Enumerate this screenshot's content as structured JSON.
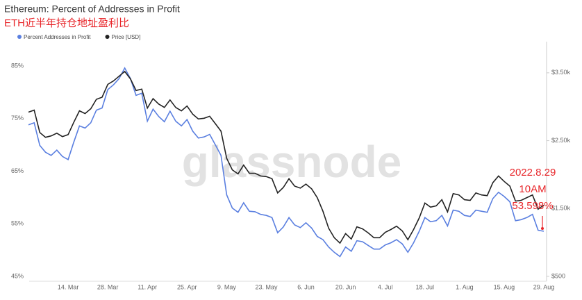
{
  "chart_data": {
    "type": "line",
    "title": "Ethereum: Percent of Addresses in Profit",
    "subtitle": "ETH近半年持仓地址盈利比",
    "watermark": "glassnode",
    "annotation": [
      "2022.8.29",
      "10AM",
      "53.598%"
    ],
    "annotation_color": "#e8262a",
    "legend": "top-left",
    "grid": false,
    "categories": [
      null,
      null,
      null,
      null,
      null,
      null,
      null,
      "14. Mar",
      null,
      null,
      null,
      null,
      null,
      null,
      "28. Mar",
      null,
      null,
      null,
      null,
      null,
      null,
      "11. Apr",
      null,
      null,
      null,
      null,
      null,
      null,
      "25. Apr",
      null,
      null,
      null,
      null,
      null,
      null,
      "9. May",
      null,
      null,
      null,
      null,
      null,
      null,
      "23. May",
      null,
      null,
      null,
      null,
      null,
      null,
      "6. Jun",
      null,
      null,
      null,
      null,
      null,
      null,
      "20. Jun",
      null,
      null,
      null,
      null,
      null,
      null,
      "4. Jul",
      null,
      null,
      null,
      null,
      null,
      null,
      "18. Jul",
      null,
      null,
      null,
      null,
      null,
      null,
      "1. Aug",
      null,
      null,
      null,
      null,
      null,
      null,
      "15. Aug",
      null,
      null,
      null,
      null,
      null,
      null,
      "29. Aug"
    ],
    "series": [
      {
        "name": "Percent Addresses in Profit",
        "color": "#5a7fe0",
        "axis": "y",
        "values": [
          73.8,
          74.2,
          69.9,
          68.6,
          68.0,
          69.0,
          67.8,
          67.2,
          70.5,
          73.6,
          73.2,
          74.2,
          76.6,
          77.0,
          80.5,
          81.4,
          82.6,
          84.6,
          82.6,
          79.4,
          79.8,
          74.5,
          76.8,
          75.4,
          74.4,
          76.4,
          74.5,
          73.6,
          74.8,
          72.6,
          71.3,
          71.5,
          72.0,
          70.0,
          68.0,
          60.5,
          58.0,
          57.2,
          59.0,
          57.4,
          57.3,
          56.8,
          56.6,
          56.2,
          53.3,
          54.4,
          56.2,
          54.8,
          54.3,
          55.2,
          54.2,
          52.6,
          52.0,
          50.6,
          49.6,
          48.8,
          50.6,
          49.8,
          51.8,
          51.6,
          50.9,
          50.2,
          50.2,
          51.0,
          51.4,
          52.0,
          51.2,
          49.6,
          51.4,
          53.6,
          56.2,
          55.4,
          55.6,
          56.6,
          54.6,
          57.6,
          57.4,
          56.6,
          56.4,
          57.6,
          57.4,
          57.2,
          59.8,
          61.0,
          60.2,
          59.2,
          55.6,
          55.8,
          56.2,
          56.8,
          53.8,
          53.6
        ]
      },
      {
        "name": "Price [USD]",
        "color": "#222222",
        "axis": "y2",
        "values": [
          2920,
          2950,
          2620,
          2550,
          2570,
          2610,
          2560,
          2590,
          2770,
          2940,
          2900,
          2970,
          3110,
          3140,
          3330,
          3380,
          3450,
          3520,
          3410,
          3240,
          3260,
          2980,
          3120,
          3040,
          2990,
          3100,
          2990,
          2940,
          3010,
          2890,
          2820,
          2830,
          2860,
          2750,
          2640,
          2240,
          2070,
          2010,
          2140,
          2020,
          2020,
          1980,
          1970,
          1940,
          1730,
          1810,
          1940,
          1830,
          1800,
          1860,
          1790,
          1660,
          1460,
          1210,
          1070,
          990,
          1130,
          1050,
          1230,
          1200,
          1140,
          1070,
          1070,
          1150,
          1190,
          1240,
          1170,
          1040,
          1190,
          1360,
          1580,
          1520,
          1540,
          1630,
          1450,
          1720,
          1700,
          1630,
          1620,
          1730,
          1700,
          1690,
          1880,
          1980,
          1900,
          1830,
          1610,
          1620,
          1660,
          1700,
          1490,
          1550
        ]
      }
    ],
    "ylim": [
      44.1,
      89.6
    ],
    "yticks": [
      {
        "value": 45,
        "label": "45%"
      },
      {
        "value": 55,
        "label": "55%"
      },
      {
        "value": 65,
        "label": "65%"
      },
      {
        "value": 75,
        "label": "75%"
      },
      {
        "value": 85,
        "label": "85%"
      }
    ],
    "y2lim": [
      428,
      3959
    ],
    "y2ticks": [
      {
        "value": 500,
        "label": "$500"
      },
      {
        "value": 1500,
        "label": "$1.50k"
      },
      {
        "value": 2500,
        "label": "$2.50k"
      },
      {
        "value": 3500,
        "label": "$3.50k"
      }
    ]
  }
}
